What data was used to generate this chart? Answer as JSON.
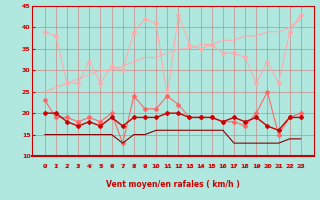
{
  "x": [
    0,
    1,
    2,
    3,
    4,
    5,
    6,
    7,
    8,
    9,
    10,
    11,
    12,
    13,
    14,
    15,
    16,
    17,
    18,
    19,
    20,
    21,
    22,
    23
  ],
  "series": [
    {
      "name": "rafales_max",
      "color": "#ffaaaa",
      "linewidth": 0.8,
      "marker": "D",
      "markersize": 2,
      "values": [
        39,
        38,
        27,
        27,
        32,
        27,
        31,
        30,
        39,
        42,
        41,
        24,
        43,
        36,
        35,
        36,
        34,
        34,
        33,
        27,
        32,
        27,
        39,
        43
      ]
    },
    {
      "name": "rafales_trend",
      "color": "#ffaaaa",
      "linewidth": 0.8,
      "marker": null,
      "markersize": 0,
      "values": [
        25,
        26,
        27,
        28,
        29,
        30,
        30,
        31,
        32,
        33,
        33,
        34,
        35,
        35,
        36,
        36,
        37,
        37,
        38,
        38,
        39,
        39,
        40,
        42
      ]
    },
    {
      "name": "vent_max",
      "color": "#ff6666",
      "linewidth": 0.8,
      "marker": "D",
      "markersize": 2,
      "values": [
        23,
        19,
        19,
        18,
        19,
        18,
        20,
        13,
        24,
        21,
        21,
        24,
        22,
        19,
        19,
        19,
        18,
        18,
        17,
        20,
        25,
        15,
        19,
        20
      ]
    },
    {
      "name": "vent_moyen",
      "color": "#cc0000",
      "linewidth": 1.0,
      "marker": "D",
      "markersize": 2,
      "values": [
        20,
        20,
        18,
        17,
        18,
        17,
        19,
        17,
        19,
        19,
        19,
        20,
        20,
        19,
        19,
        19,
        18,
        19,
        18,
        19,
        17,
        16,
        19,
        19
      ]
    },
    {
      "name": "vent_min",
      "color": "#880000",
      "linewidth": 0.8,
      "marker": null,
      "markersize": 0,
      "values": [
        15,
        15,
        15,
        15,
        15,
        15,
        15,
        13,
        15,
        15,
        16,
        16,
        16,
        16,
        16,
        16,
        16,
        13,
        13,
        13,
        13,
        13,
        14,
        14
      ]
    }
  ],
  "xlabel": "Vent moyen/en rafales ( km/h )",
  "ylim": [
    10,
    45
  ],
  "yticks": [
    10,
    15,
    20,
    25,
    30,
    35,
    40,
    45
  ],
  "xticks": [
    0,
    1,
    2,
    3,
    4,
    5,
    6,
    7,
    8,
    9,
    10,
    11,
    12,
    13,
    14,
    15,
    16,
    17,
    18,
    19,
    20,
    21,
    22,
    23
  ],
  "background_color": "#b0e8e0",
  "grid_color": "#cc8888",
  "axis_color": "#cc0000",
  "tick_color": "#cc0000",
  "label_color": "#cc0000"
}
